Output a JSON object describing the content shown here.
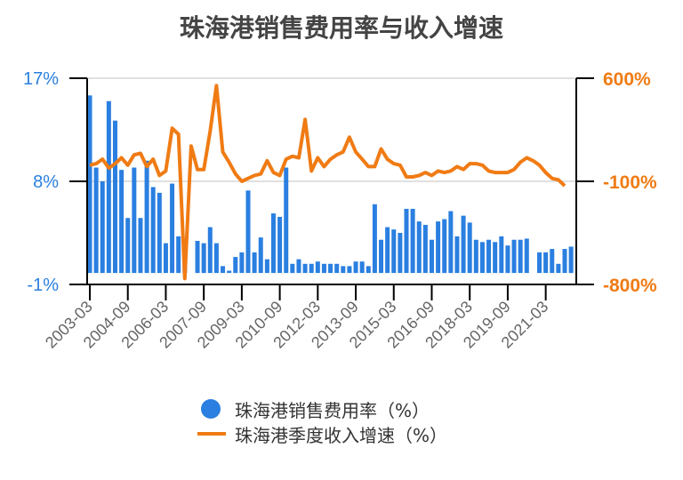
{
  "title": "珠海港销售费用率与收入增速",
  "colors": {
    "bar": "#2a7fe0",
    "line": "#f07b14",
    "left_axis_text": "#2a7fe0",
    "right_axis_text": "#f07b14",
    "grid": "#e0e0e0",
    "tick_text": "#666666"
  },
  "legend": {
    "items": [
      {
        "label": "珠海港销售费用率（%）",
        "type": "dot"
      },
      {
        "label": "珠海港季度收入增速（%）",
        "type": "line"
      }
    ]
  },
  "chart_data": {
    "type": "bar+line",
    "title": "珠海港销售费用率与收入增速",
    "x_tick_labels": [
      "2003-03",
      "2004-09",
      "2006-03",
      "2007-09",
      "2009-03",
      "2010-09",
      "2012-03",
      "2013-09",
      "2015-03",
      "2016-09",
      "2018-03",
      "2019-09",
      "2021-03"
    ],
    "left_axis": {
      "ticks": [
        "17%",
        "8%",
        "-1%"
      ],
      "range": [
        -1,
        17
      ]
    },
    "right_axis": {
      "ticks": [
        "600%",
        "-100%",
        "-800%"
      ],
      "range": [
        -800,
        600
      ]
    },
    "legend_position": "bottom",
    "series": [
      {
        "name": "珠海港销售费用率（%）",
        "axis": "left",
        "type": "bar",
        "values": [
          15.5,
          9.2,
          8.0,
          15.0,
          13.3,
          9.0,
          4.8,
          9.2,
          4.8,
          9.8,
          7.5,
          7.0,
          2.6,
          7.8,
          3.2,
          2.7,
          null,
          2.8,
          2.6,
          4.0,
          2.6,
          0.6,
          0.2,
          1.4,
          1.8,
          7.2,
          1.8,
          3.1,
          1.2,
          5.2,
          4.9,
          9.2,
          0.8,
          1.2,
          0.8,
          0.8,
          1.0,
          0.8,
          0.8,
          0.8,
          0.6,
          0.6,
          1.0,
          1.0,
          0.6,
          6.0,
          2.9,
          4.0,
          3.8,
          3.5,
          5.6,
          5.6,
          4.5,
          4.2,
          2.9,
          4.5,
          4.7,
          5.4,
          3.2,
          5.0,
          4.4,
          2.9,
          2.7,
          2.9,
          2.7,
          3.2,
          2.4,
          2.9,
          2.9,
          3.0,
          null,
          1.8,
          1.8,
          2.1,
          0.8,
          2.1,
          2.3
        ],
        "note": "values estimated from bar heights; baseline at 0%"
      },
      {
        "name": "珠海港季度收入增速（%）",
        "axis": "right",
        "type": "line",
        "values": [
          10,
          20,
          50,
          -10,
          20,
          60,
          10,
          80,
          90,
          0,
          50,
          -60,
          -30,
          260,
          220,
          -760,
          140,
          -20,
          -20,
          240,
          550,
          100,
          30,
          -50,
          -100,
          -80,
          -60,
          -50,
          40,
          -40,
          -60,
          50,
          70,
          60,
          320,
          -30,
          60,
          0,
          50,
          80,
          100,
          200,
          100,
          50,
          0,
          0,
          120,
          50,
          20,
          10,
          -70,
          -70,
          -60,
          -40,
          -60,
          -30,
          -40,
          -30,
          0,
          -20,
          20,
          20,
          10,
          -30,
          -40,
          -40,
          -40,
          -20,
          30,
          60,
          40,
          10,
          -40,
          -80,
          -90,
          -130
        ],
        "note": "values estimated from line position"
      }
    ]
  }
}
